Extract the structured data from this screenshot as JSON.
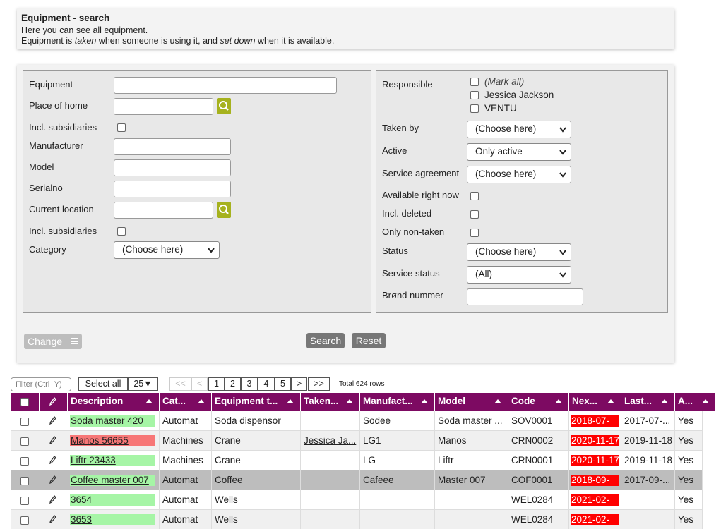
{
  "header": {
    "title": "Equipment - search",
    "line1": "Here you can see all equipment.",
    "line2": [
      {
        "text": "Equipment is "
      },
      {
        "text": "taken",
        "italic": true
      },
      {
        "text": " when someone is using it, and "
      },
      {
        "text": "set down",
        "italic": true
      },
      {
        "text": " when it is available."
      }
    ]
  },
  "form": {
    "left": [
      {
        "label": "Equipment",
        "control": "text"
      },
      {
        "label": "Place of home",
        "control": "lookup"
      },
      {
        "label": "Incl. subsidiaries",
        "control": "checkbox"
      },
      {
        "label": "Manufacturer",
        "control": "text"
      },
      {
        "label": "Model",
        "control": "text"
      },
      {
        "label": "Serialno",
        "control": "text"
      },
      {
        "label": "Current location",
        "control": "lookup"
      },
      {
        "label": "Incl. subsidiaries",
        "control": "checkbox"
      },
      {
        "label": "Category",
        "control": "select",
        "value": "(Choose here)"
      }
    ],
    "responsible": {
      "label": "Responsible",
      "options": [
        "(Mark all)",
        "Jessica Jackson",
        "VENTU"
      ]
    },
    "right": [
      {
        "label": "Taken by",
        "control": "select",
        "value": "(Choose here)"
      },
      {
        "label": "Active",
        "control": "select",
        "value": "Only active"
      },
      {
        "label": "Service agreement",
        "control": "select",
        "value": "(Choose here)"
      },
      {
        "label": "Available right now",
        "control": "checkbox"
      },
      {
        "label": "Incl. deleted",
        "control": "checkbox"
      },
      {
        "label": "Only non-taken",
        "control": "checkbox"
      },
      {
        "label": "Status",
        "control": "select",
        "value": "(Choose here)"
      },
      {
        "label": "Service status",
        "control": "select",
        "value": "(All)"
      },
      {
        "label": "Brønd nummer",
        "control": "text"
      }
    ]
  },
  "buttons": {
    "change": "Change",
    "search": "Search",
    "reset": "Reset"
  },
  "toolbar": {
    "filter_placeholder": "Filter (Ctrl+Y)",
    "select_all": "Select all",
    "page_size": "25▼",
    "pages": [
      "<<",
      "<",
      "1",
      "2",
      "3",
      "4",
      "5",
      ">",
      ">>"
    ],
    "total": "Total 624 rows"
  },
  "table": {
    "columns": [
      "Description",
      "Cat...",
      "Equipment t...",
      "Taken...",
      "Manufact...",
      "Model",
      "Code",
      "Nex...",
      "Last...",
      "A..."
    ],
    "rows": [
      {
        "desc_color": "#a6f5a6",
        "cells": [
          "Soda master 420",
          "Automat",
          "Soda dispensor",
          null,
          "Sodee",
          "Soda master ...",
          "SOV0001",
          "2018-07-",
          "2017-07-...",
          "Yes"
        ]
      },
      {
        "desc_color": "#f77777",
        "cells": [
          "Manos 56655",
          "Machines",
          "Crane",
          "Jessica Ja...",
          "LG1",
          "Manos",
          "CRN0002",
          "2020-11-17",
          "2019-11-18",
          "Yes"
        ]
      },
      {
        "desc_color": "#a6f5a6",
        "cells": [
          "Liftr 23433",
          "Machines",
          "Crane",
          null,
          "LG",
          "Liftr",
          "CRN0001",
          "2020-11-17",
          "2019-11-18",
          "Yes"
        ]
      },
      {
        "desc_color": "#a6f5a6",
        "cells": [
          "Coffee master 007",
          "Automat",
          "Coffee",
          null,
          "Cafeee",
          "Master 007",
          "COF0001",
          "2018-09-",
          "2017-09-...",
          "Yes"
        ]
      },
      {
        "desc_color": "#a6f5a6",
        "cells": [
          "3654",
          "Automat",
          "Wells",
          null,
          null,
          null,
          "WEL0284",
          "2021-02-",
          null,
          "Yes"
        ]
      },
      {
        "desc_color": "#a6f5a6",
        "cells": [
          "3653",
          "Automat",
          "Wells",
          null,
          null,
          null,
          "WEL0284",
          "2021-02-",
          null,
          "Yes"
        ]
      }
    ]
  }
}
